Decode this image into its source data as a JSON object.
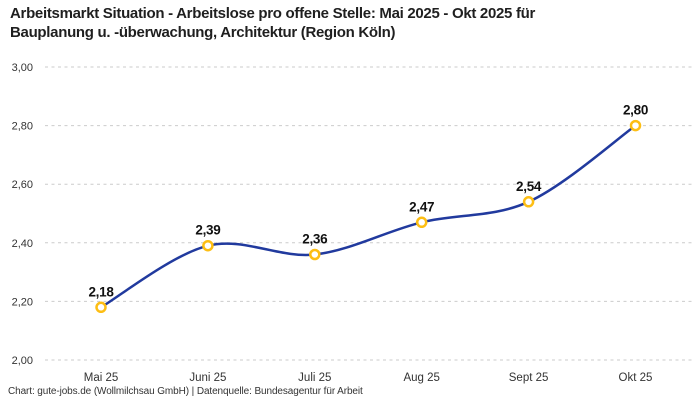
{
  "header": {
    "title_line1": "Arbeitsmarkt Situation - Arbeitslose pro offene Stelle: Mai 2025 - Okt 2025 für",
    "title_line2": "Bauplanung u. -überwachung, Architektur (Region Köln)"
  },
  "footer": {
    "credit": "Chart: gute-jobs.de (Wollmilchsau GmbH) | Datenquelle: Bundesagentur für Arbeit"
  },
  "chart_data": {
    "type": "line",
    "title": "Arbeitsmarkt Situation - Arbeitslose pro offene Stelle: Mai 2025 - Okt 2025 für Bauplanung u. -überwachung, Architektur (Region Köln)",
    "categories": [
      "Mai 25",
      "Juni 25",
      "Juli 25",
      "Aug 25",
      "Sept 25",
      "Okt 25"
    ],
    "values": [
      2.18,
      2.39,
      2.36,
      2.47,
      2.54,
      2.8
    ],
    "point_labels": [
      "2,18",
      "2,39",
      "2,36",
      "2,47",
      "2,54",
      "2,80"
    ],
    "y_ticks": [
      3.0,
      2.8,
      2.6,
      2.4,
      2.2,
      2.0
    ],
    "y_tick_labels": [
      "3,00",
      "2,80",
      "2,60",
      "2,40",
      "2,20",
      "2,00"
    ],
    "ylim": [
      2.0,
      3.0
    ],
    "xlabel": "",
    "ylabel": "",
    "grid": "horizontal-dashed",
    "legend": "none",
    "colors": {
      "line": "#213a9e",
      "marker_ring": "#fdbe14",
      "marker_fill": "#ffffff",
      "gridline": "#cbcbcb",
      "tick_text": "#333333",
      "value_label_text": "#111111"
    }
  }
}
